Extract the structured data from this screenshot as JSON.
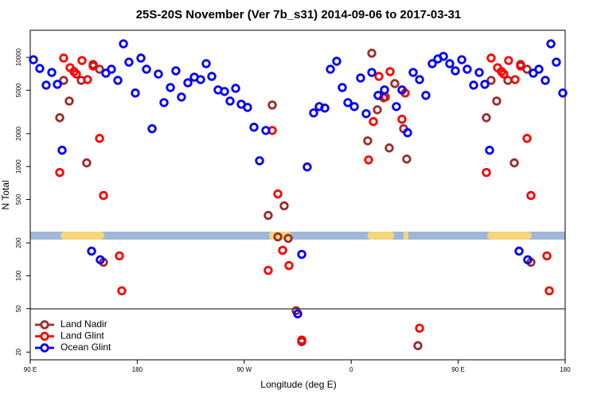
{
  "chart_data": {
    "type": "scatter",
    "title": "25S-20S November (Ver 7b_s31)   2014-09-06 to 2017-03-31",
    "x_label": "Longitude (deg E)",
    "y_label": "N Total",
    "xlim": [
      90,
      540
    ],
    "xticks": [
      {
        "value": 90,
        "label": "90 E"
      },
      180,
      {
        "value": 270,
        "label": "90 W"
      },
      {
        "value": 360,
        "label": "0"
      },
      {
        "value": 450,
        "label": "90 E"
      },
      {
        "value": 540,
        "label": "180"
      }
    ],
    "ylim": [
      17,
      17700
    ],
    "y_scale": "log",
    "yticks": [
      20,
      50,
      100,
      200,
      500,
      1000,
      2000,
      5000,
      10000
    ],
    "grid": false,
    "legend_position": "lower left",
    "series": [
      {
        "name": "Land Nadir",
        "color": "#9b2d2d",
        "x": [
          114.8,
          118.1,
          122.8,
          132.9,
          137.5,
          142.9,
          148.3,
          151.6,
          290.2,
          293.6,
          298.3,
          303.6,
          307.0,
          313.7,
          318.4,
          373.9,
          377.3,
          382.0,
          387.3,
          392.0,
          396.7,
          404.1,
          406.7,
          416.1,
          473.7,
          477.7,
          482.4,
          491.8,
          497.2,
          502.5,
          507.9,
          511.2
        ],
        "values": [
          2800,
          6150,
          3980,
          6150,
          1080,
          8600,
          7780,
          133,
          357,
          3660,
          227,
          437,
          220,
          47.9,
          24.9,
          1720,
          10900,
          3310,
          4260,
          1480,
          5750,
          2220,
          1170,
          22.9,
          2800,
          6150,
          3980,
          6150,
          1080,
          8600,
          7780,
          133
        ]
      },
      {
        "name": "Land Glint",
        "color": "#ff0000",
        "x": [
          114.8,
          118.1,
          123.5,
          126.8,
          128.8,
          133.5,
          138.2,
          142.9,
          148.3,
          151.6,
          165.0,
          167.0,
          290.2,
          293.6,
          298.3,
          302.3,
          307.6,
          318.4,
          374.6,
          378.6,
          383.3,
          388.7,
          392.7,
          402.7,
          405.4,
          417.5,
          473.7,
          477.7,
          483.1,
          486.4,
          488.4,
          492.4,
          497.8,
          502.5,
          507.9,
          511.2,
          524.6,
          526.6
        ],
        "values": [
          882,
          9840,
          8040,
          7400,
          7030,
          9350,
          6250,
          8320,
          1810,
          543,
          152,
          72.8,
          112,
          2140,
          561,
          171,
          124,
          25.8,
          1150,
          2580,
          6690,
          4330,
          7400,
          2710,
          4710,
          33.1,
          882,
          9840,
          8040,
          7400,
          7030,
          9350,
          6250,
          8320,
          1810,
          543,
          152,
          72.8
        ]
      },
      {
        "name": "Ocean Glint",
        "color": "#0000ff",
        "x": [
          92.7,
          98.0,
          103.4,
          108.1,
          112.8,
          116.8,
          141.6,
          148.9,
          153.6,
          158.3,
          163.7,
          168.4,
          173.0,
          178.4,
          183.1,
          187.8,
          192.5,
          197.8,
          202.5,
          207.9,
          212.5,
          217.2,
          222.6,
          228.0,
          233.3,
          238.0,
          242.7,
          248.0,
          253.4,
          258.1,
          262.8,
          267.5,
          272.8,
          278.2,
          282.9,
          288.2,
          315.0,
          318.4,
          323.0,
          328.4,
          333.1,
          337.8,
          342.5,
          347.8,
          352.5,
          357.2,
          362.6,
          367.9,
          372.6,
          377.3,
          382.6,
          388.0,
          398.0,
          402.7,
          407.4,
          412.1,
          417.5,
          422.8,
          428.2,
          432.9,
          437.6,
          442.9,
          447.6,
          453.0,
          457.6,
          463.0,
          467.7,
          472.4,
          476.4,
          501.2,
          508.5,
          513.2,
          517.9,
          523.3,
          528.0,
          532.6,
          538.0
        ],
        "values": [
          9510,
          7910,
          5560,
          7270,
          5660,
          1410,
          168,
          140,
          7160,
          7780,
          6150,
          13300,
          9040,
          4710,
          9840,
          7780,
          2220,
          7030,
          3850,
          5290,
          7520,
          4330,
          5850,
          6580,
          6250,
          8750,
          6690,
          5030,
          4870,
          3980,
          5200,
          3720,
          3480,
          2290,
          1130,
          2140,
          44.8,
          157,
          991,
          3100,
          3540,
          3430,
          7780,
          9200,
          5290,
          3850,
          3540,
          6470,
          3050,
          7270,
          4480,
          5030,
          3540,
          5030,
          2040,
          7270,
          6250,
          4480,
          8750,
          9670,
          10200,
          8750,
          7520,
          9510,
          7780,
          5560,
          7270,
          5660,
          1410,
          168,
          140,
          7160,
          7780,
          6150,
          13300,
          9040,
          4710
        ]
      }
    ]
  }
}
